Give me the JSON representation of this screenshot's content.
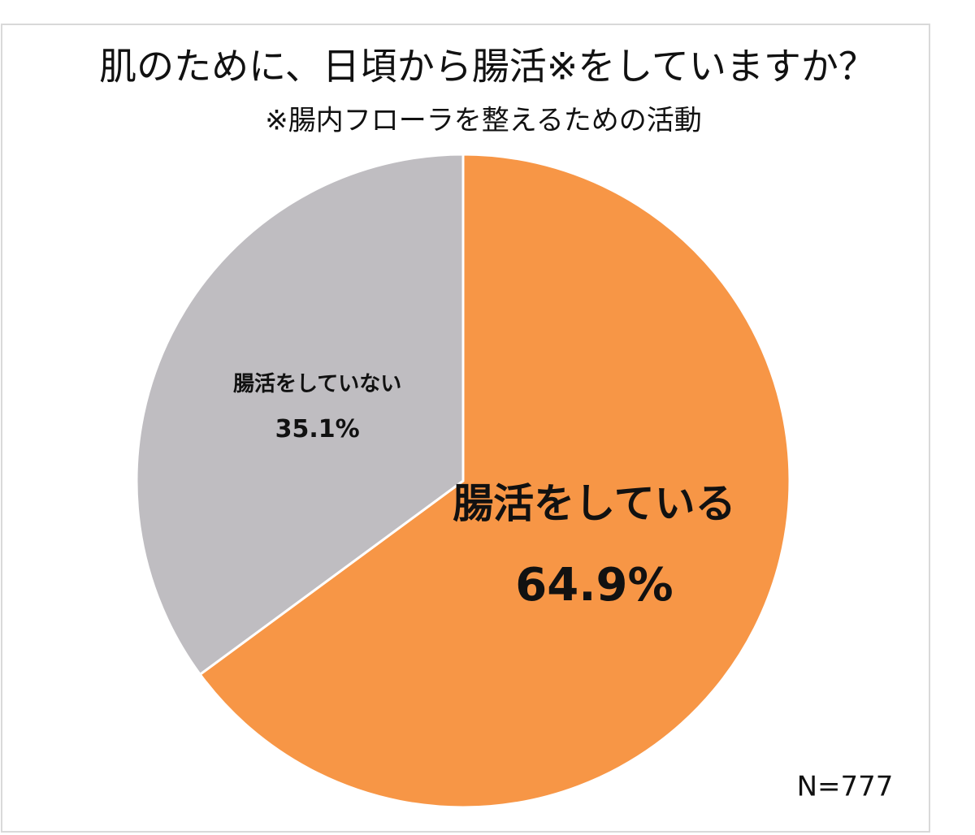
{
  "chart_data": {
    "type": "pie",
    "title": "肌のために、日頃から腸活※をしていますか？",
    "subtitle": "※腸内フローラを整えるための活動",
    "categories": [
      "腸活をしている",
      "腸活をしていない"
    ],
    "values": [
      64.9,
      35.1
    ],
    "value_labels": [
      "64.9%",
      "35.1%"
    ],
    "colors": [
      "#f79646",
      "#bfbdc1"
    ],
    "annotation": "N=777"
  }
}
